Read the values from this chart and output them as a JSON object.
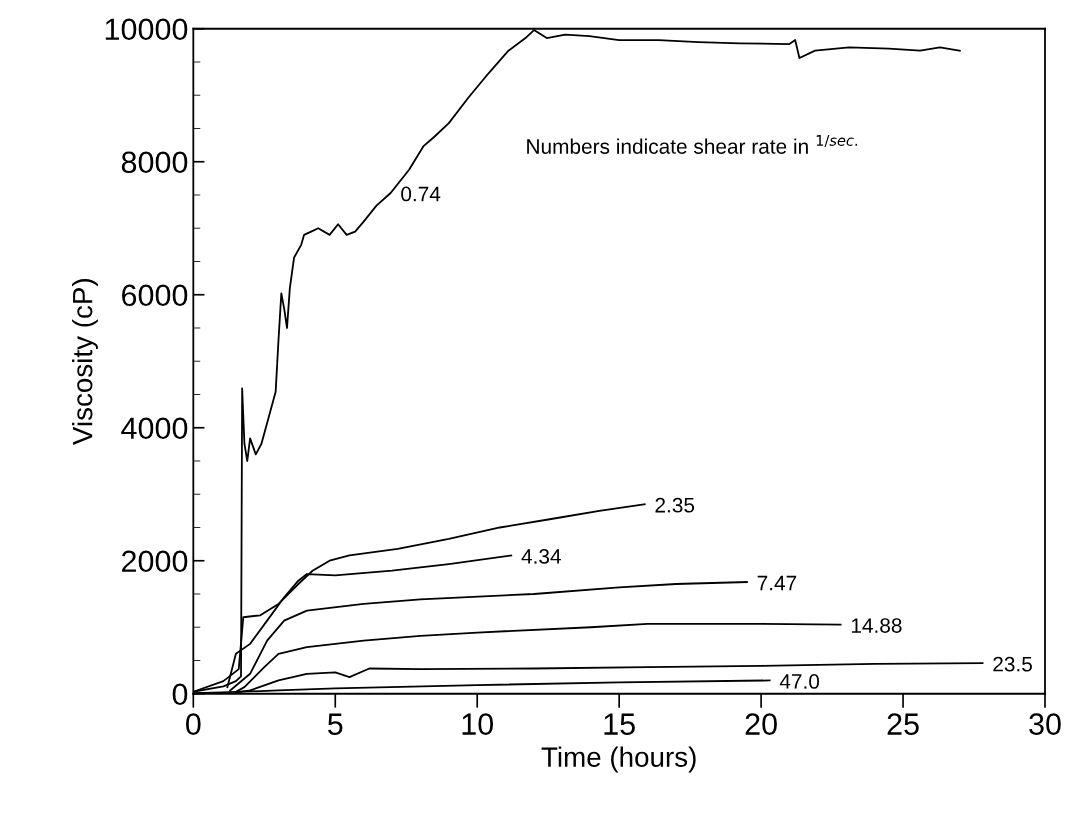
{
  "chart_data": {
    "type": "line",
    "xlabel": "Time (hours)",
    "ylabel": "Viscosity (cP)",
    "xlim": [
      0,
      30
    ],
    "xticks": [
      0,
      5,
      10,
      15,
      20,
      25,
      30
    ],
    "ylim": [
      0,
      10000
    ],
    "yticks": [
      0,
      2000,
      4000,
      6000,
      8000,
      10000
    ],
    "grid": false,
    "legend": false,
    "marker": "none",
    "line_style": "solid",
    "series": [
      {
        "color": "#000000",
        "x": [
          0,
          1.06,
          1.5,
          1.68,
          1.72,
          1.8,
          1.9,
          2.0,
          2.2,
          2.4,
          2.6,
          2.9,
          3.0,
          3.1,
          3.2,
          3.3,
          3.4,
          3.55,
          3.8,
          3.9,
          4.15,
          4.4,
          4.8,
          5.1,
          5.4,
          5.7,
          6.0,
          6.45,
          6.95,
          7.6,
          8.1,
          8.5,
          9.0,
          9.7,
          10.4,
          11.1,
          11.7,
          12.0,
          12.45,
          13.1,
          13.95,
          15.0,
          16.4,
          17.8,
          19.25,
          21.0,
          21.2,
          21.35,
          21.9,
          23.1,
          24.5,
          25.6,
          26.3,
          27.0
        ],
        "values": [
          30,
          110,
          190,
          260,
          4590,
          3760,
          3500,
          3840,
          3600,
          3760,
          4070,
          4540,
          5320,
          6020,
          5790,
          5500,
          6100,
          6560,
          6750,
          6900,
          6950,
          7000,
          6900,
          7060,
          6900,
          6950,
          7100,
          7340,
          7530,
          7880,
          8230,
          8380,
          8580,
          8970,
          9330,
          9670,
          9860,
          9980,
          9860,
          9910,
          9890,
          9830,
          9830,
          9800,
          9780,
          9770,
          9830,
          9560,
          9670,
          9720,
          9700,
          9670,
          9720,
          9670
        ]
      },
      {
        "color": "#000000",
        "x": [
          0,
          1.06,
          1.6,
          1.7,
          1.76,
          2.36,
          3.0,
          3.7,
          4.2,
          4.8,
          5.5,
          7.2,
          9.0,
          10.8,
          12.5,
          14.3,
          15.9
        ],
        "values": [
          30,
          190,
          370,
          860,
          1150,
          1180,
          1350,
          1650,
          1850,
          2000,
          2080,
          2180,
          2330,
          2500,
          2620,
          2750,
          2850
        ]
      },
      {
        "color": "#000000",
        "x": [
          1.2,
          1.5,
          2.0,
          2.6,
          3.2,
          3.7,
          4.0,
          5.0,
          7.0,
          9.0,
          11.2
        ],
        "values": [
          100,
          600,
          750,
          1100,
          1450,
          1700,
          1800,
          1780,
          1850,
          1950,
          2080
        ]
      },
      {
        "color": "#000000",
        "x": [
          1.3,
          2.0,
          2.6,
          3.2,
          4.0,
          6.0,
          8.0,
          12.0,
          15.0,
          17.0,
          19.5
        ],
        "values": [
          50,
          300,
          800,
          1100,
          1250,
          1350,
          1420,
          1500,
          1600,
          1650,
          1680
        ]
      },
      {
        "color": "#000000",
        "x": [
          1.5,
          1.8,
          2.5,
          3.0,
          4.0,
          6.0,
          8.0,
          10.0,
          14.0,
          16.0,
          20.0,
          22.8
        ],
        "values": [
          30,
          100,
          400,
          600,
          700,
          800,
          870,
          920,
          1000,
          1050,
          1050,
          1040
        ]
      },
      {
        "color": "#000000",
        "x": [
          1.5,
          2.0,
          3.0,
          4.0,
          5.0,
          5.5,
          6.2,
          8.0,
          12.0,
          16.0,
          20.0,
          24.0,
          27.8
        ],
        "values": [
          20,
          50,
          200,
          300,
          320,
          250,
          380,
          370,
          380,
          400,
          420,
          450,
          460
        ]
      },
      {
        "color": "#000000",
        "x": [
          0,
          1.0,
          3.0,
          5.0,
          10.0,
          15.0,
          20.3
        ],
        "values": [
          10,
          20,
          50,
          80,
          130,
          170,
          200
        ]
      }
    ],
    "annotations": [
      "Numbers indicate shear rate in $^{1/sec.}$",
      {
        "text": "0.74",
        "x": 6.95,
        "y": 7530
      },
      {
        "text": "2.35",
        "x": 15.9,
        "y": 2850
      },
      {
        "text": "4.34",
        "x": 11.2,
        "y": 2080
      },
      {
        "text": "7.47",
        "x": 19.5,
        "y": 1680
      },
      {
        "text": "14.88",
        "x": 22.8,
        "y": 1040
      },
      {
        "text": "23.5",
        "x": 27.8,
        "y": 460
      },
      {
        "text": "47.0",
        "x": 20.3,
        "y": 200
      }
    ]
  }
}
